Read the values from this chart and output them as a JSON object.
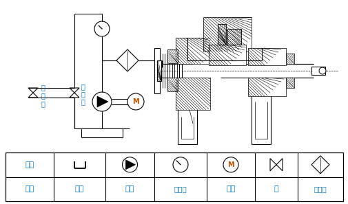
{
  "bg_color": "#ffffff",
  "line_color": "#000000",
  "text_color_cyan": "#0070c0",
  "text_color_orange": "#c05000",
  "fig_width": 5.05,
  "fig_height": 2.97,
  "dpi": 100,
  "cooling_text_lines": [
    "冷",
    "却",
    "水"
  ]
}
